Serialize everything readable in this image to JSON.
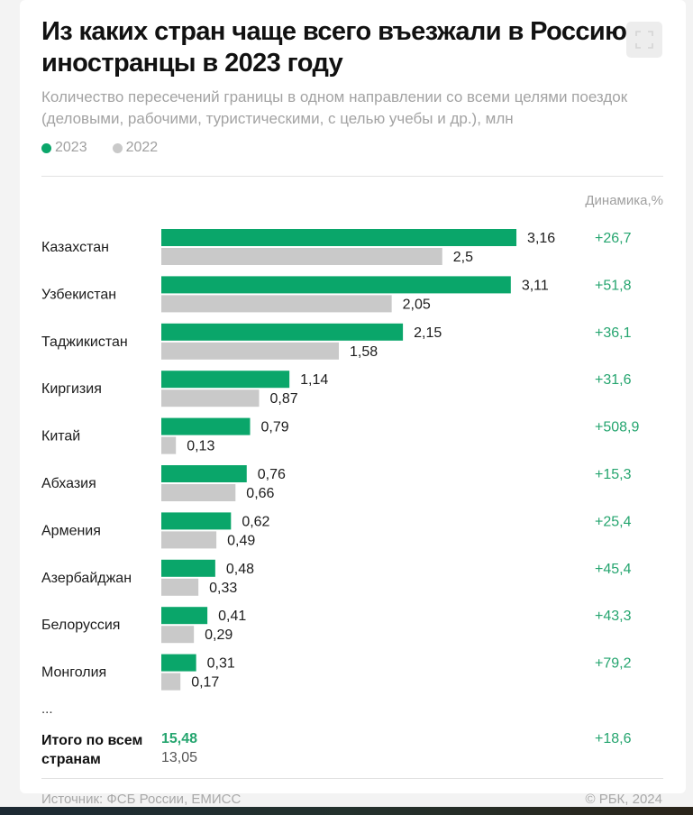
{
  "header": {
    "title": "Из каких стран чаще всего въезжали в Россию иностранцы в 2023 году",
    "subtitle": "Количество пересечений границы в одном направлении со всеми целями поездок (деловыми, рабочими, туристическими, с целью учебы и др.), млн",
    "expand_icon": "expand-icon"
  },
  "legend": [
    {
      "label": "2023",
      "color": "#0aa66a"
    },
    {
      "label": "2022",
      "color": "#c9c9c9"
    }
  ],
  "dynamics_header": "Динамика,%",
  "chart_data": {
    "type": "bar",
    "orientation": "horizontal",
    "title": "Из каких стран чаще всего въезжали в Россию иностранцы в 2023 году",
    "unit": "млн",
    "categories": [
      "Казахстан",
      "Узбекистан",
      "Таджикистан",
      "Киргизия",
      "Китай",
      "Абхазия",
      "Армения",
      "Азербайджан",
      "Белоруссия",
      "Монголия"
    ],
    "series": [
      {
        "name": "2023",
        "color": "#0aa66a",
        "values": [
          3.16,
          3.11,
          2.15,
          1.14,
          0.79,
          0.76,
          0.62,
          0.48,
          0.41,
          0.31
        ],
        "labels": [
          "3,16",
          "3,11",
          "2,15",
          "1,14",
          "0,79",
          "0,76",
          "0,62",
          "0,48",
          "0,41",
          "0,31"
        ]
      },
      {
        "name": "2022",
        "color": "#c9c9c9",
        "values": [
          2.5,
          2.05,
          1.58,
          0.87,
          0.13,
          0.66,
          0.49,
          0.33,
          0.29,
          0.17
        ],
        "labels": [
          "2,5",
          "2,05",
          "1,58",
          "0,87",
          "0,13",
          "0,66",
          "0,49",
          "0,33",
          "0,29",
          "0,17"
        ]
      }
    ],
    "dynamics": [
      "+26,7",
      "+51,8",
      "+36,1",
      "+31,6",
      "+508,9",
      "+15,3",
      "+25,4",
      "+45,4",
      "+43,3",
      "+79,2"
    ],
    "xlim": [
      0,
      3.5
    ],
    "grid": false,
    "legend_position": "top-left"
  },
  "ellipsis": "...",
  "total": {
    "label": "Итого по всем странам",
    "value_2023": "15,48",
    "value_2022": "13,05",
    "dynamics": "+18,6"
  },
  "footer": {
    "source": "Источник: ФСБ России, ЕМИСС",
    "copyright": "© РБК, 2024"
  }
}
